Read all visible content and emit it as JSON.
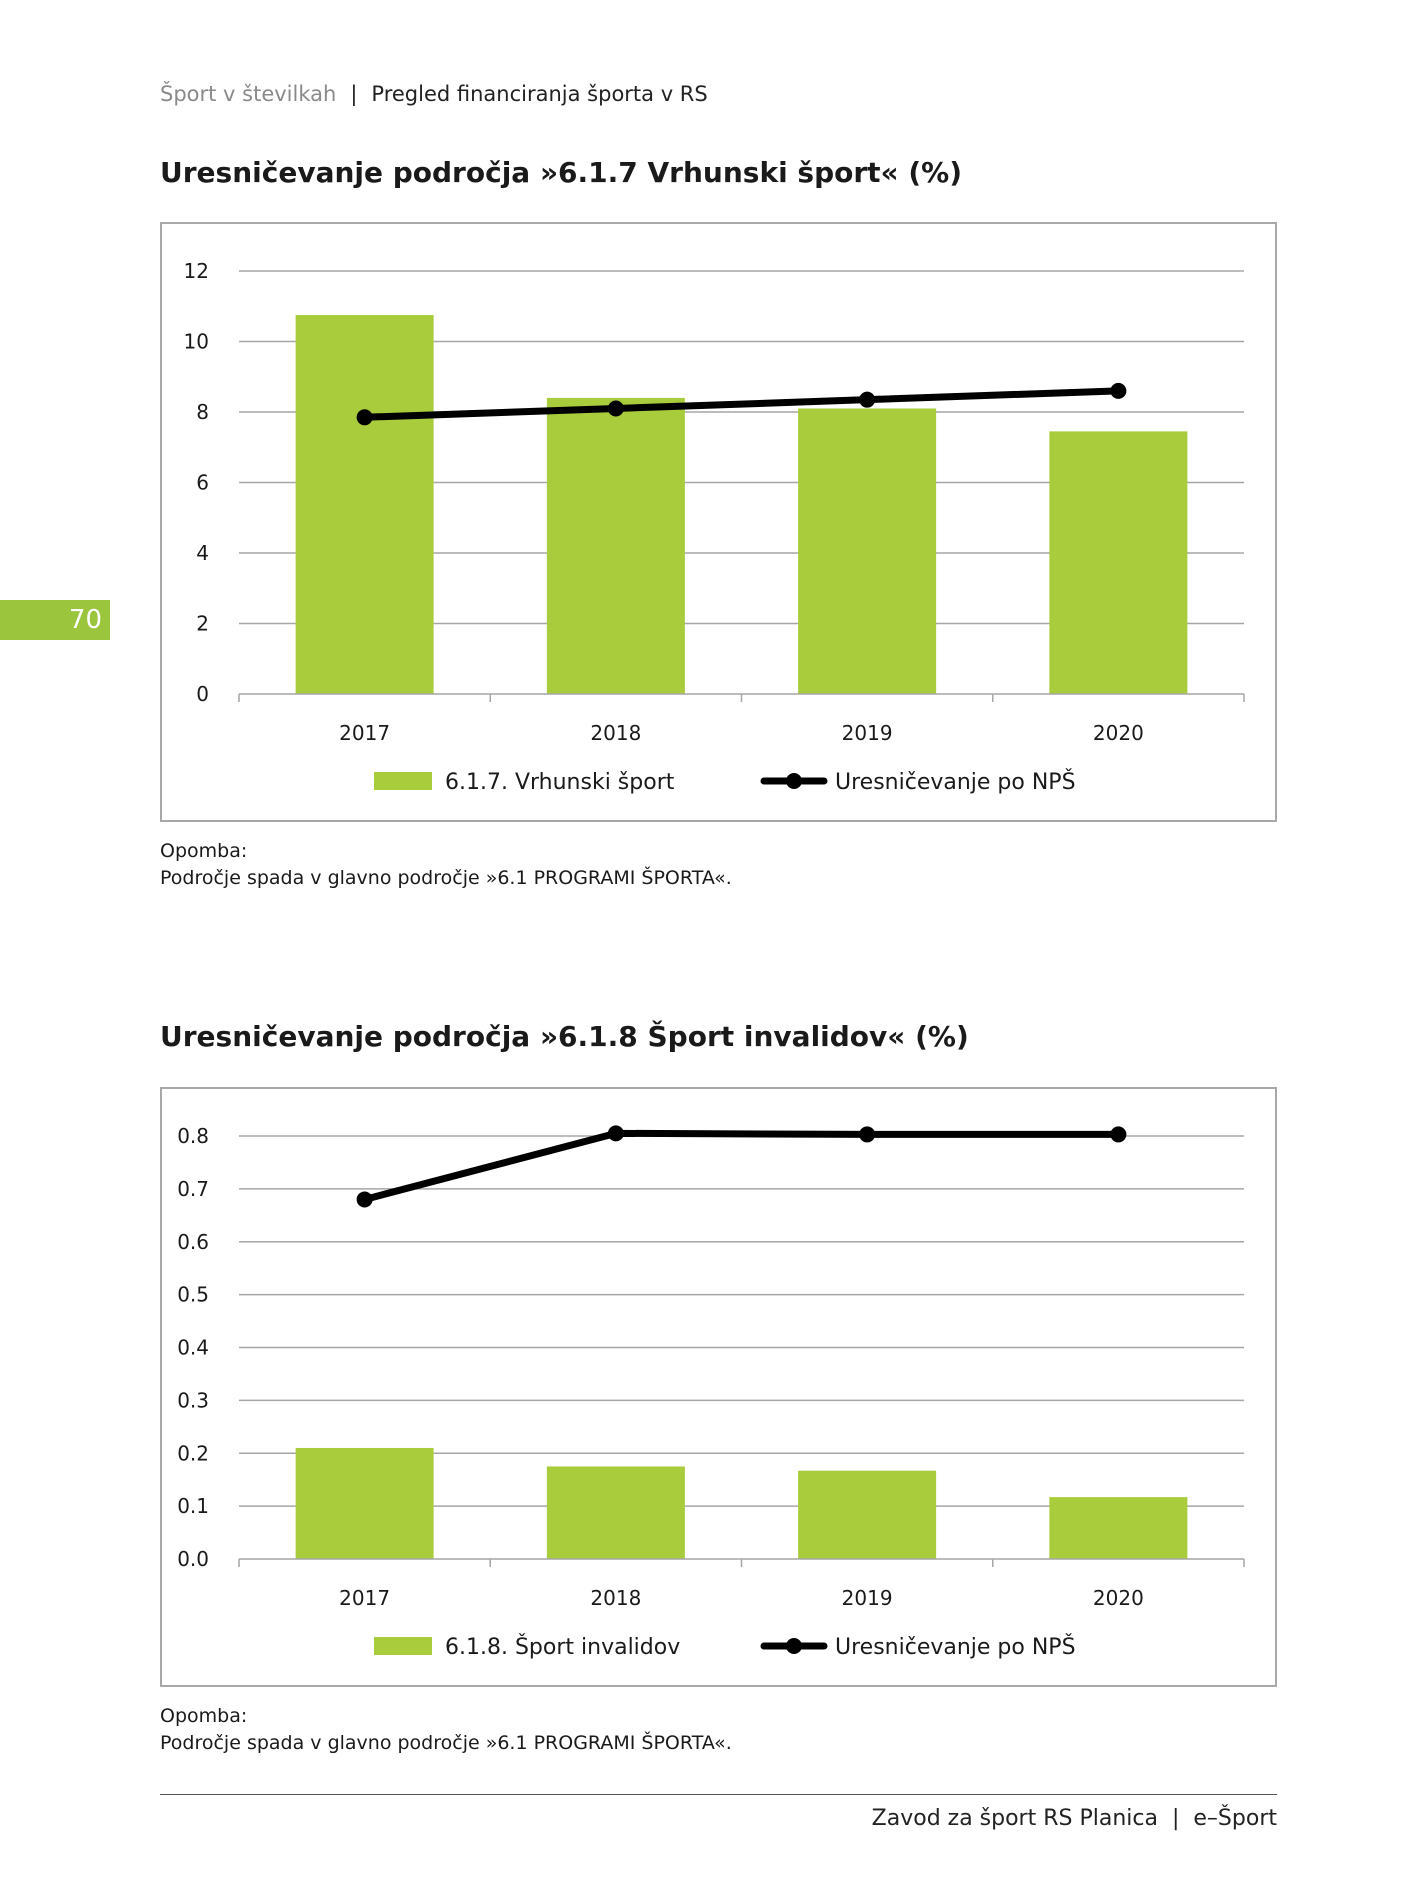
{
  "header": {
    "left": "Šport v številkah",
    "right": "Pregled financiranja športa v RS"
  },
  "page_number": "70",
  "colors": {
    "bar": "#a8cc3c",
    "line": "#000000",
    "grid": "#a6a6a6",
    "accent": "#9bc53d"
  },
  "charts": [
    {
      "title": "Uresničevanje področja »6.1.7 Vrhunski šport« (%)",
      "note_label": "Opomba:",
      "note_text": "Področje spada v glavno področje »6.1 PROGRAMI ŠPORTA«."
    },
    {
      "title": "Uresničevanje področja »6.1.8 Šport invalidov« (%)",
      "note_label": "Opomba:",
      "note_text": "Področje spada v glavno področje »6.1 PROGRAMI ŠPORTA«."
    }
  ],
  "chart_data": [
    {
      "type": "bar",
      "title": "Uresničevanje področja »6.1.7 Vrhunski šport« (%)",
      "categories": [
        "2017",
        "2018",
        "2019",
        "2020"
      ],
      "series": [
        {
          "name": "6.1.7. Vrhunski šport",
          "kind": "bar",
          "values": [
            10.75,
            8.4,
            8.1,
            7.45
          ]
        },
        {
          "name": "Uresničevanje po NPŠ",
          "kind": "line",
          "values": [
            7.85,
            8.1,
            8.35,
            8.6
          ]
        }
      ],
      "ylim": [
        0,
        12
      ],
      "yticks": [
        "0",
        "2",
        "4",
        "6",
        "8",
        "10",
        "12"
      ],
      "ytick_values": [
        0,
        2,
        4,
        6,
        8,
        10,
        12
      ],
      "grid": true,
      "legend_position": "bottom"
    },
    {
      "type": "bar",
      "title": "Uresničevanje področja »6.1.8 Šport invalidov« (%)",
      "categories": [
        "2017",
        "2018",
        "2019",
        "2020"
      ],
      "series": [
        {
          "name": "6.1.8. Šport invalidov",
          "kind": "bar",
          "values": [
            0.21,
            0.175,
            0.167,
            0.117
          ]
        },
        {
          "name": "Uresničevanje po NPŠ",
          "kind": "line",
          "values": [
            0.68,
            0.805,
            0.803,
            0.803
          ]
        }
      ],
      "ylim": [
        0,
        0.8
      ],
      "yticks": [
        "0.0",
        "0.1",
        "0.2",
        "0.3",
        "0.4",
        "0.5",
        "0.6",
        "0.7",
        "0.8"
      ],
      "ytick_values": [
        0,
        0.1,
        0.2,
        0.3,
        0.4,
        0.5,
        0.6,
        0.7,
        0.8
      ],
      "grid": true,
      "legend_position": "bottom"
    }
  ],
  "footer": {
    "left": "Zavod za šport RS Planica",
    "right": "e–Šport"
  }
}
